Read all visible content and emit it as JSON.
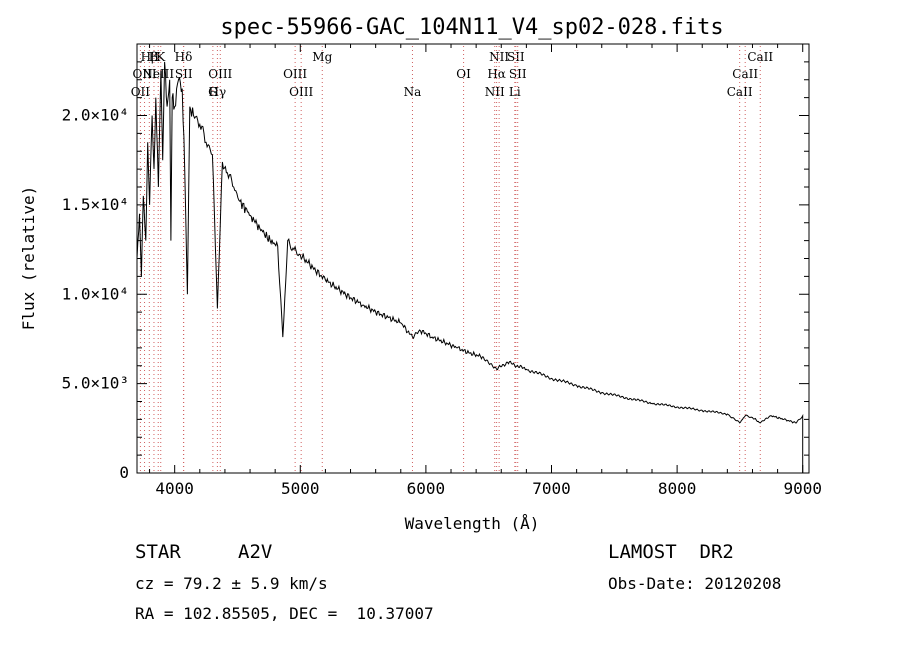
{
  "chart_data": {
    "type": "line",
    "title": "spec-55966-GAC_104N11_V4_sp02-028.fits",
    "xlabel": "Wavelength (Å)",
    "ylabel": "Flux (relative)",
    "xlim": [
      3700,
      9050
    ],
    "ylim": [
      0,
      24000
    ],
    "x_ticks": [
      4000,
      5000,
      6000,
      7000,
      8000,
      9000
    ],
    "x_tick_labels": [
      "4000",
      "5000",
      "6000",
      "7000",
      "8000",
      "9000"
    ],
    "y_ticks": [
      0,
      5000,
      10000,
      15000,
      20000
    ],
    "y_tick_labels": [
      "0",
      "5.0×10³",
      "1.0×10⁴",
      "1.5×10⁴",
      "2.0×10⁴"
    ],
    "grid": false,
    "series": [
      {
        "x": [
          3700,
          3720,
          3735,
          3750,
          3770,
          3785,
          3800,
          3820,
          3835,
          3850,
          3870,
          3890,
          3905,
          3920,
          3940,
          3960,
          3970,
          3980,
          4000,
          4030,
          4060,
          4080,
          4101,
          4120,
          4150,
          4200,
          4250,
          4300,
          4340,
          4380,
          4420,
          4470,
          4520,
          4580,
          4640,
          4700,
          4760,
          4820,
          4861,
          4900,
          4950,
          5000,
          5100,
          5200,
          5300,
          5400,
          5500,
          5600,
          5700,
          5800,
          5893,
          5950,
          6050,
          6150,
          6250,
          6350,
          6450,
          6563,
          6650,
          6800,
          7000,
          7200,
          7400,
          7600,
          7800,
          8000,
          8200,
          8400,
          8498,
          8542,
          8600,
          8662,
          8750,
          8850,
          8950,
          9000
        ],
        "y": [
          12000,
          14500,
          11000,
          15500,
          13000,
          18500,
          15000,
          20000,
          17000,
          21000,
          16000,
          22500,
          17500,
          23000,
          20500,
          22000,
          13000,
          21000,
          20500,
          22000,
          21500,
          17000,
          10000,
          20500,
          20000,
          19500,
          18500,
          17800,
          9200,
          17400,
          16800,
          16000,
          15200,
          14600,
          14000,
          13500,
          13000,
          12700,
          7600,
          13000,
          12500,
          12200,
          11500,
          10800,
          10300,
          9800,
          9400,
          9000,
          8700,
          8400,
          7600,
          8000,
          7600,
          7300,
          7000,
          6700,
          6500,
          5800,
          6200,
          5800,
          5300,
          4900,
          4500,
          4200,
          3900,
          3700,
          3500,
          3300,
          2800,
          3200,
          3100,
          2800,
          3200,
          3000,
          2800,
          3200
        ]
      }
    ],
    "line_labels": [
      {
        "label": "Hβ",
        "lambda": 3798,
        "row": 1
      },
      {
        "label": "H",
        "lambda": 3835,
        "row": 1
      },
      {
        "label": "K",
        "lambda": 3889,
        "row": 1
      },
      {
        "label": "Hδ",
        "lambda": 4070,
        "row": 1
      },
      {
        "label": "Mg",
        "lambda": 5175,
        "row": 1
      },
      {
        "label": "NII",
        "lambda": 6583,
        "row": 1
      },
      {
        "label": "SII",
        "lambda": 6716,
        "row": 1
      },
      {
        "label": "CaII",
        "lambda": 8662,
        "row": 1
      },
      {
        "label": "OIII",
        "lambda": 3760,
        "row": 2
      },
      {
        "label": "NeIII",
        "lambda": 3869,
        "row": 2
      },
      {
        "label": "SII",
        "lambda": 4072,
        "row": 2
      },
      {
        "label": "OIII",
        "lambda": 4363,
        "row": 2
      },
      {
        "label": "OIII",
        "lambda": 4959,
        "row": 2
      },
      {
        "label": "OI",
        "lambda": 6300,
        "row": 2
      },
      {
        "label": "Hα",
        "lambda": 6563,
        "row": 2
      },
      {
        "label": "SII",
        "lambda": 6731,
        "row": 2
      },
      {
        "label": "CaII",
        "lambda": 8542,
        "row": 2
      },
      {
        "label": "OII",
        "lambda": 3727,
        "row": 3
      },
      {
        "label": "Hγ",
        "lambda": 4340,
        "row": 3
      },
      {
        "label": "OIII",
        "lambda": 5007,
        "row": 3
      },
      {
        "label": "Na",
        "lambda": 5893,
        "row": 3
      },
      {
        "label": "NII",
        "lambda": 6548,
        "row": 3
      },
      {
        "label": "Li",
        "lambda": 6708,
        "row": 3
      },
      {
        "label": "CaII",
        "lambda": 8498,
        "row": 3
      },
      {
        "label": "G",
        "lambda": 4304,
        "row": 4
      }
    ]
  },
  "info": {
    "class_label": "STAR",
    "subclass": "A2V",
    "survey": "LAMOST  DR2",
    "cz": "cz = 79.2 ± 5.9 km/s",
    "obs_date": "Obs-Date: 20120208",
    "radec": "RA = 102.85505, DEC =  10.37007"
  }
}
